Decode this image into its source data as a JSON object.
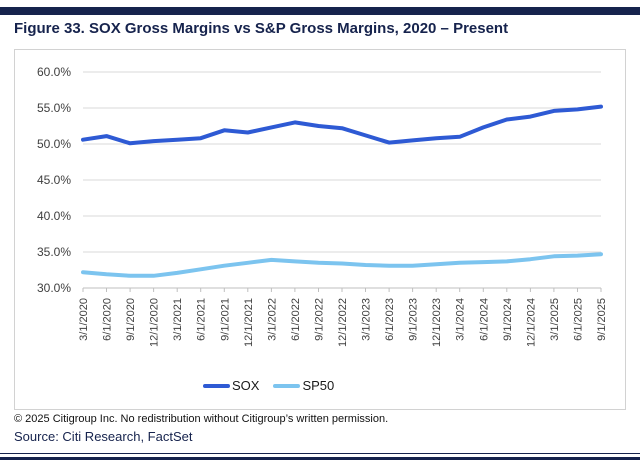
{
  "page": {
    "title": "Figure 33. SOX Gross Margins vs S&P Gross Margins, 2020 – Present"
  },
  "footer": {
    "copyright": "© 2025 Citigroup Inc. No redistribution without Citigroup’s written permission.",
    "source": "Source: Citi Research, FactSet"
  },
  "colors": {
    "navy": "#16234d",
    "sox": "#2e5ad4",
    "sp50": "#7cc4ef",
    "gridline": "#d9d9d9",
    "axis_line": "#bfbfbf",
    "axis_text": "#3f3f3f"
  },
  "chart_data": {
    "type": "line",
    "title": "Figure 33. SOX Gross Margins vs S&P Gross Margins, 2020 – Present",
    "xlabel": "",
    "ylabel": "",
    "ylim": [
      30,
      60
    ],
    "ytick_step": 5,
    "ytick_labels": [
      "60.0%",
      "55.0%",
      "50.0%",
      "45.0%",
      "40.0%",
      "35.0%",
      "30.0%"
    ],
    "grid": "horizontal",
    "legend_position": "bottom",
    "categories": [
      "3/1/2020",
      "6/1/2020",
      "9/1/2020",
      "12/1/2020",
      "3/1/2021",
      "6/1/2021",
      "9/1/2021",
      "12/1/2021",
      "3/1/2022",
      "6/1/2022",
      "9/1/2022",
      "12/1/2022",
      "3/1/2023",
      "6/1/2023",
      "9/1/2023",
      "12/1/2023",
      "3/1/2024",
      "6/1/2024",
      "9/1/2024",
      "12/1/2024",
      "3/1/2025",
      "6/1/2025",
      "9/1/2025"
    ],
    "series": [
      {
        "name": "SOX",
        "color_key": "sox",
        "values": [
          50.6,
          51.1,
          50.1,
          50.4,
          50.6,
          50.8,
          51.9,
          51.6,
          52.3,
          53.0,
          52.5,
          52.2,
          51.2,
          50.2,
          50.5,
          50.8,
          51.0,
          52.3,
          53.4,
          53.8,
          54.6,
          54.8,
          55.2
        ]
      },
      {
        "name": "SP50",
        "color_key": "sp50",
        "values": [
          32.2,
          31.9,
          31.7,
          31.7,
          32.1,
          32.6,
          33.1,
          33.5,
          33.9,
          33.7,
          33.5,
          33.4,
          33.2,
          33.1,
          33.1,
          33.3,
          33.5,
          33.6,
          33.7,
          34.0,
          34.4,
          34.5,
          34.7
        ]
      }
    ]
  }
}
